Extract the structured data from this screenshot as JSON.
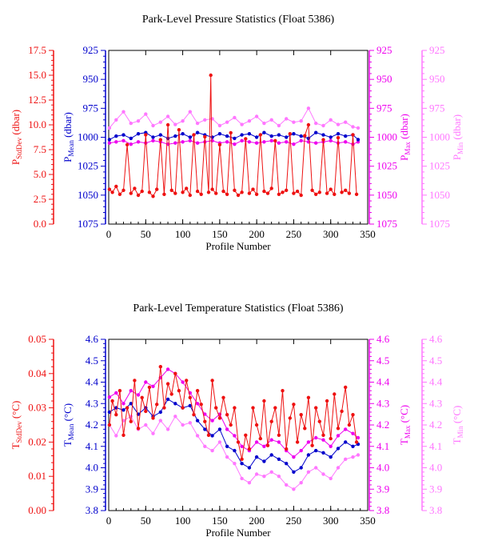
{
  "colors": {
    "stddev": "#ee1111",
    "mean": "#0000cc",
    "max": "#ee00ee",
    "min": "#ff77ff",
    "axis": "#000000"
  },
  "chart_data": [
    {
      "type": "line",
      "title": "Park-Level Pressure Statistics (Float 5386)",
      "xlabel": "Profile Number",
      "xlim": [
        0,
        350
      ],
      "x_ticks": [
        "0",
        "50",
        "100",
        "150",
        "200",
        "250",
        "300",
        "350"
      ],
      "axes": {
        "stddev": {
          "label_main": "P",
          "label_sub": "StdDev",
          "label_unit": " (dbar)",
          "lim": [
            0,
            17.5
          ],
          "inverted": false,
          "ticks": [
            "0.0",
            "2.5",
            "5.0",
            "7.5",
            "10.0",
            "12.5",
            "15.0",
            "17.5"
          ]
        },
        "mean": {
          "label_main": "P",
          "label_sub": "Mean",
          "label_unit": " (dbar)",
          "lim": [
            925,
            1075
          ],
          "inverted": true,
          "ticks": [
            "925",
            "950",
            "975",
            "1000",
            "1025",
            "1050",
            "1075"
          ]
        },
        "max": {
          "label_main": "P",
          "label_sub": "Max",
          "label_unit": " (dbar)",
          "lim": [
            925,
            1075
          ],
          "inverted": true,
          "ticks": [
            "925",
            "950",
            "975",
            "1000",
            "1025",
            "1050",
            "1075"
          ]
        },
        "min": {
          "label_main": "P",
          "label_sub": "Min",
          "label_unit": " (dbar)",
          "lim": [
            925,
            1075
          ],
          "inverted": true,
          "ticks": [
            "925",
            "950",
            "975",
            "1000",
            "1025",
            "1050",
            "1075"
          ]
        }
      },
      "series": [
        {
          "axis": "stddev",
          "x": [
            1,
            5,
            10,
            15,
            20,
            25,
            30,
            35,
            40,
            45,
            50,
            55,
            60,
            65,
            70,
            75,
            80,
            85,
            90,
            95,
            100,
            105,
            110,
            115,
            120,
            125,
            130,
            135,
            138,
            140,
            145,
            150,
            155,
            160,
            165,
            170,
            175,
            180,
            185,
            190,
            195,
            200,
            205,
            210,
            215,
            220,
            225,
            230,
            235,
            240,
            245,
            250,
            255,
            260,
            265,
            270,
            275,
            280,
            285,
            290,
            295,
            300,
            305,
            310,
            315,
            320,
            325,
            330,
            335
          ],
          "y": [
            3.5,
            3.2,
            3.8,
            3.0,
            3.4,
            8.0,
            3.1,
            3.6,
            2.9,
            3.3,
            9.0,
            3.2,
            2.8,
            3.5,
            8.5,
            3.0,
            10.0,
            3.4,
            3.1,
            9.5,
            3.2,
            3.6,
            2.9,
            9.0,
            3.3,
            3.0,
            8.8,
            3.2,
            15.0,
            3.5,
            3.1,
            8.0,
            3.3,
            3.0,
            9.2,
            3.4,
            2.9,
            3.2,
            8.6,
            3.1,
            3.5,
            3.0,
            9.0,
            3.3,
            3.1,
            3.6,
            8.4,
            3.0,
            3.2,
            3.4,
            9.1,
            3.1,
            3.3,
            2.9,
            8.9,
            10.0,
            3.4,
            3.0,
            3.2,
            8.5,
            3.1,
            3.5,
            3.0,
            8.7,
            3.2,
            3.4,
            3.1,
            9.0,
            3.0
          ]
        },
        {
          "axis": "mean",
          "x": [
            1,
            10,
            20,
            30,
            40,
            50,
            60,
            70,
            80,
            90,
            100,
            110,
            120,
            130,
            140,
            150,
            160,
            170,
            180,
            190,
            200,
            210,
            220,
            230,
            240,
            250,
            260,
            270,
            280,
            290,
            300,
            310,
            320,
            330,
            337
          ],
          "y": [
            1002,
            999,
            998,
            1001,
            997,
            996,
            1000,
            998,
            1001,
            999,
            997,
            1000,
            996,
            998,
            1000,
            997,
            999,
            1001,
            998,
            997,
            1000,
            996,
            999,
            998,
            1000,
            997,
            999,
            1001,
            996,
            998,
            1000,
            997,
            999,
            998,
            1002
          ]
        },
        {
          "axis": "max",
          "x": [
            1,
            10,
            20,
            30,
            40,
            50,
            60,
            70,
            80,
            90,
            100,
            110,
            120,
            130,
            140,
            150,
            160,
            170,
            180,
            190,
            200,
            210,
            220,
            230,
            240,
            250,
            260,
            270,
            280,
            290,
            300,
            310,
            320,
            330,
            337
          ],
          "y": [
            1005,
            1004,
            1003,
            1006,
            1004,
            1005,
            1003,
            1004,
            1006,
            1005,
            1004,
            1003,
            1005,
            1004,
            1003,
            1005,
            1004,
            1006,
            1003,
            1004,
            1005,
            1004,
            1003,
            1005,
            1004,
            1006,
            1003,
            1004,
            1005,
            1004,
            1003,
            1005,
            1004,
            1006,
            1004
          ]
        },
        {
          "axis": "min",
          "x": [
            1,
            10,
            20,
            30,
            40,
            50,
            60,
            70,
            80,
            90,
            100,
            110,
            120,
            130,
            140,
            150,
            160,
            170,
            180,
            190,
            200,
            210,
            220,
            230,
            240,
            250,
            260,
            270,
            280,
            290,
            300,
            310,
            320,
            330,
            337
          ],
          "y": [
            992,
            985,
            978,
            988,
            986,
            980,
            990,
            987,
            982,
            989,
            986,
            978,
            988,
            985,
            984,
            990,
            987,
            983,
            989,
            986,
            982,
            988,
            985,
            990,
            984,
            987,
            986,
            975,
            988,
            990,
            985,
            989,
            987,
            991,
            992
          ]
        }
      ]
    },
    {
      "type": "line",
      "title": "Park-Level Temperature Statistics (Float 5386)",
      "xlabel": "Profile Number",
      "xlim": [
        0,
        350
      ],
      "x_ticks": [
        "0",
        "50",
        "100",
        "150",
        "200",
        "250",
        "300",
        "350"
      ],
      "axes": {
        "stddev": {
          "label_main": "T",
          "label_sub": "StdDev",
          "label_unit": " (°C)",
          "lim": [
            0,
            0.05
          ],
          "inverted": false,
          "ticks": [
            "0.00",
            "0.01",
            "0.02",
            "0.03",
            "0.04",
            "0.05"
          ]
        },
        "mean": {
          "label_main": "T",
          "label_sub": "Mean",
          "label_unit": " (°C)",
          "lim": [
            3.8,
            4.6
          ],
          "inverted": false,
          "ticks": [
            "3.8",
            "3.9",
            "4.0",
            "4.1",
            "4.2",
            "4.3",
            "4.4",
            "4.5",
            "4.6"
          ]
        },
        "max": {
          "label_main": "T",
          "label_sub": "Max",
          "label_unit": " (°C)",
          "lim": [
            3.8,
            4.6
          ],
          "inverted": false,
          "ticks": [
            "3.8",
            "3.9",
            "4.0",
            "4.1",
            "4.2",
            "4.3",
            "4.4",
            "4.5",
            "4.6"
          ]
        },
        "min": {
          "label_main": "T",
          "label_sub": "Min",
          "label_unit": " (°C)",
          "lim": [
            3.8,
            4.6
          ],
          "inverted": false,
          "ticks": [
            "3.8",
            "3.9",
            "4.0",
            "4.1",
            "4.2",
            "4.3",
            "4.4",
            "4.5",
            "4.6"
          ]
        }
      },
      "series": [
        {
          "axis": "stddev",
          "x": [
            1,
            5,
            10,
            15,
            20,
            25,
            30,
            35,
            40,
            45,
            50,
            55,
            60,
            65,
            70,
            75,
            80,
            85,
            90,
            95,
            100,
            105,
            110,
            115,
            120,
            125,
            130,
            135,
            140,
            145,
            150,
            155,
            160,
            165,
            170,
            175,
            180,
            185,
            190,
            195,
            200,
            205,
            210,
            215,
            220,
            225,
            230,
            235,
            240,
            245,
            250,
            255,
            260,
            265,
            270,
            275,
            280,
            285,
            290,
            295,
            300,
            305,
            310,
            315,
            320,
            325,
            330,
            335
          ],
          "y": [
            0.025,
            0.032,
            0.028,
            0.035,
            0.022,
            0.03,
            0.026,
            0.038,
            0.024,
            0.033,
            0.029,
            0.036,
            0.027,
            0.031,
            0.042,
            0.03,
            0.037,
            0.034,
            0.04,
            0.035,
            0.03,
            0.038,
            0.033,
            0.028,
            0.035,
            0.031,
            0.026,
            0.022,
            0.038,
            0.03,
            0.027,
            0.033,
            0.028,
            0.025,
            0.03,
            0.02,
            0.015,
            0.022,
            0.018,
            0.03,
            0.025,
            0.021,
            0.032,
            0.019,
            0.026,
            0.03,
            0.022,
            0.035,
            0.018,
            0.027,
            0.031,
            0.02,
            0.028,
            0.024,
            0.033,
            0.019,
            0.03,
            0.026,
            0.022,
            0.032,
            0.021,
            0.034,
            0.024,
            0.029,
            0.036,
            0.025,
            0.028,
            0.02
          ]
        },
        {
          "axis": "mean",
          "x": [
            1,
            10,
            20,
            30,
            40,
            50,
            60,
            70,
            80,
            90,
            100,
            110,
            120,
            130,
            140,
            150,
            160,
            170,
            180,
            190,
            200,
            210,
            220,
            230,
            240,
            250,
            260,
            270,
            280,
            290,
            300,
            310,
            320,
            330,
            337
          ],
          "y": [
            4.26,
            4.28,
            4.27,
            4.3,
            4.25,
            4.28,
            4.24,
            4.26,
            4.32,
            4.3,
            4.28,
            4.29,
            4.22,
            4.18,
            4.15,
            4.18,
            4.1,
            4.08,
            4.02,
            4.0,
            4.05,
            4.03,
            4.06,
            4.04,
            4.02,
            3.98,
            4.0,
            4.06,
            4.08,
            4.07,
            4.05,
            4.09,
            4.12,
            4.1,
            4.11
          ]
        },
        {
          "axis": "max",
          "x": [
            1,
            10,
            20,
            30,
            40,
            50,
            60,
            70,
            80,
            90,
            100,
            110,
            120,
            130,
            140,
            150,
            160,
            170,
            180,
            190,
            200,
            210,
            220,
            230,
            240,
            250,
            260,
            270,
            280,
            290,
            300,
            310,
            320,
            330,
            337
          ],
          "y": [
            4.33,
            4.35,
            4.3,
            4.36,
            4.34,
            4.4,
            4.38,
            4.42,
            4.46,
            4.44,
            4.4,
            4.35,
            4.3,
            4.25,
            4.22,
            4.25,
            4.18,
            4.15,
            4.1,
            4.08,
            4.12,
            4.1,
            4.13,
            4.12,
            4.08,
            4.05,
            4.08,
            4.12,
            4.14,
            4.13,
            4.1,
            4.15,
            4.18,
            4.16,
            4.14
          ]
        },
        {
          "axis": "min",
          "x": [
            1,
            10,
            20,
            30,
            40,
            50,
            60,
            70,
            80,
            90,
            100,
            110,
            120,
            130,
            140,
            150,
            160,
            170,
            180,
            190,
            200,
            210,
            220,
            230,
            240,
            250,
            260,
            270,
            280,
            290,
            300,
            310,
            320,
            330,
            337
          ],
          "y": [
            4.2,
            4.15,
            4.22,
            4.24,
            4.18,
            4.2,
            4.16,
            4.22,
            4.18,
            4.24,
            4.2,
            4.21,
            4.15,
            4.1,
            4.08,
            4.12,
            4.05,
            4.02,
            3.95,
            3.93,
            3.97,
            3.96,
            3.98,
            3.96,
            3.92,
            3.9,
            3.93,
            3.98,
            4.0,
            3.97,
            3.95,
            4.0,
            4.04,
            4.05,
            4.06
          ]
        }
      ]
    }
  ]
}
